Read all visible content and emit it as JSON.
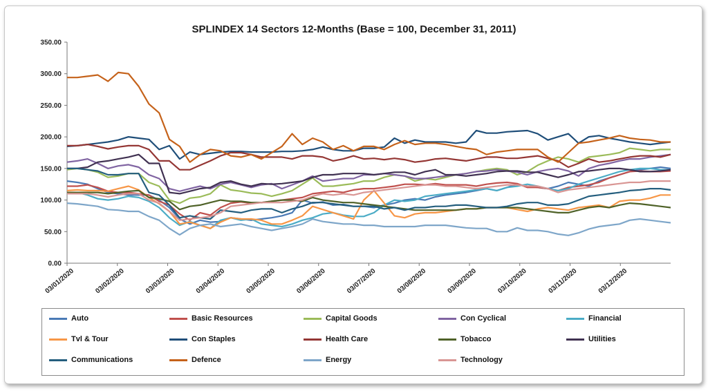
{
  "chart_data": {
    "type": "line",
    "title": "SPLINDEX 14 Sectors 12-Months (Base = 100, December 31, 2011)",
    "xlabel": "",
    "ylabel": "",
    "ylim": [
      0,
      350
    ],
    "yticks": [
      "0.00",
      "50.00",
      "100.00",
      "150.00",
      "200.00",
      "250.00",
      "300.00",
      "350.00"
    ],
    "xticks": [
      "03/01/2020",
      "03/02/2020",
      "03/03/2020",
      "03/04/2020",
      "03/05/2020",
      "03/06/2020",
      "03/07/2020",
      "03/08/2020",
      "03/09/2020",
      "03/10/2020",
      "03/11/2020",
      "03/12/2020"
    ],
    "legend_position": "bottom",
    "grid": false,
    "series": [
      {
        "name": "Auto",
        "color": "#4a7ab5",
        "values": [
          130,
          128,
          125,
          118,
          112,
          110,
          108,
          108,
          108,
          100,
          88,
          70,
          62,
          68,
          65,
          66,
          72,
          70,
          68,
          70,
          72,
          75,
          80,
          100,
          95,
          97,
          92,
          93,
          90,
          90,
          88,
          92,
          95,
          100,
          102,
          100,
          105,
          108,
          110,
          112,
          115,
          118,
          115,
          120,
          125,
          122,
          120,
          118,
          122,
          128,
          125,
          122,
          130,
          135,
          140,
          145,
          148,
          150,
          152,
          150
        ]
      },
      {
        "name": "Basic Resources",
        "color": "#c0504d",
        "values": [
          122,
          122,
          124,
          120,
          114,
          112,
          112,
          110,
          108,
          98,
          92,
          78,
          68,
          80,
          76,
          88,
          95,
          97,
          95,
          96,
          98,
          100,
          102,
          104,
          110,
          112,
          114,
          112,
          116,
          118,
          118,
          120,
          122,
          125,
          125,
          124,
          126,
          124,
          124,
          124,
          122,
          125,
          127,
          128,
          126,
          120,
          120,
          118,
          115,
          120,
          122,
          124,
          128,
          135,
          140,
          145,
          146,
          145,
          145,
          146
        ]
      },
      {
        "name": "Capital Goods",
        "color": "#9bbb59",
        "values": [
          148,
          150,
          148,
          144,
          136,
          138,
          142,
          142,
          128,
          122,
          100,
          95,
          103,
          105,
          110,
          124,
          116,
          114,
          111,
          110,
          106,
          110,
          115,
          125,
          135,
          122,
          122,
          124,
          126,
          130,
          130,
          136,
          140,
          138,
          130,
          134,
          132,
          136,
          140,
          142,
          145,
          148,
          150,
          148,
          140,
          145,
          155,
          162,
          168,
          165,
          160,
          168,
          170,
          172,
          175,
          182,
          180,
          178,
          180,
          180
        ]
      },
      {
        "name": "Con Cyclical",
        "color": "#8064a2",
        "values": [
          160,
          162,
          165,
          158,
          150,
          154,
          156,
          152,
          140,
          134,
          118,
          114,
          118,
          122,
          118,
          125,
          128,
          124,
          120,
          124,
          126,
          118,
          124,
          130,
          138,
          130,
          132,
          134,
          134,
          140,
          140,
          142,
          140,
          138,
          134,
          134,
          136,
          138,
          140,
          142,
          145,
          146,
          148,
          146,
          144,
          140,
          145,
          148,
          150,
          146,
          138,
          150,
          155,
          158,
          162,
          165,
          165,
          168,
          170,
          172
        ]
      },
      {
        "name": "Financial",
        "color": "#4bacc6",
        "values": [
          110,
          112,
          108,
          102,
          100,
          102,
          106,
          104,
          98,
          88,
          72,
          60,
          66,
          60,
          55,
          68,
          72,
          68,
          70,
          62,
          60,
          58,
          62,
          68,
          72,
          78,
          80,
          76,
          74,
          74,
          80,
          92,
          100,
          98,
          100,
          106,
          108,
          110,
          112,
          114,
          116,
          118,
          115,
          120,
          122,
          125,
          122,
          118,
          115,
          118,
          125,
          130,
          135,
          140,
          145,
          148,
          150,
          150,
          148,
          148
        ]
      },
      {
        "name": "Tvl & Tour",
        "color": "#f79646",
        "values": [
          115,
          116,
          115,
          115,
          114,
          118,
          122,
          116,
          104,
          94,
          82,
          62,
          65,
          60,
          55,
          65,
          72,
          70,
          70,
          68,
          62,
          62,
          68,
          75,
          90,
          85,
          80,
          75,
          70,
          100,
          115,
          95,
          75,
          72,
          78,
          80,
          80,
          82,
          84,
          86,
          86,
          88,
          88,
          88,
          85,
          82,
          86,
          88,
          86,
          84,
          88,
          90,
          92,
          88,
          98,
          100,
          100,
          103,
          108,
          108
        ]
      },
      {
        "name": "Con Staples",
        "color": "#1f4e79",
        "values": [
          185,
          186,
          188,
          190,
          192,
          195,
          200,
          198,
          196,
          180,
          186,
          165,
          176,
          172,
          174,
          176,
          177,
          177,
          176,
          176,
          176,
          177,
          177,
          178,
          180,
          184,
          180,
          178,
          178,
          182,
          182,
          184,
          198,
          190,
          195,
          192,
          192,
          192,
          190,
          192,
          210,
          206,
          206,
          208,
          209,
          210,
          205,
          195,
          200,
          205,
          190,
          200,
          202,
          198,
          195,
          192,
          190,
          188,
          190,
          192
        ]
      },
      {
        "name": "Health Care",
        "color": "#943634",
        "values": [
          186,
          186,
          188,
          185,
          181,
          184,
          186,
          186,
          180,
          162,
          162,
          148,
          148,
          155,
          162,
          170,
          175,
          175,
          172,
          168,
          168,
          168,
          165,
          170,
          170,
          168,
          162,
          165,
          170,
          165,
          166,
          164,
          166,
          164,
          160,
          162,
          165,
          166,
          164,
          162,
          165,
          168,
          168,
          166,
          166,
          168,
          170,
          166,
          162,
          152,
          158,
          165,
          160,
          162,
          165,
          168,
          170,
          170,
          168,
          172
        ]
      },
      {
        "name": "Tobacco",
        "color": "#4f6228",
        "values": [
          112,
          112,
          112,
          112,
          110,
          112,
          114,
          115,
          104,
          102,
          98,
          85,
          90,
          92,
          96,
          100,
          98,
          98,
          96,
          96,
          98,
          100,
          100,
          98,
          104,
          100,
          98,
          96,
          96,
          94,
          92,
          90,
          88,
          86,
          84,
          84,
          84,
          84,
          84,
          86,
          86,
          88,
          88,
          88,
          88,
          86,
          84,
          82,
          80,
          80,
          84,
          88,
          90,
          88,
          92,
          95,
          94,
          92,
          90,
          88
        ]
      },
      {
        "name": "Utilities",
        "color": "#403151",
        "values": [
          150,
          150,
          152,
          160,
          162,
          165,
          168,
          172,
          158,
          158,
          112,
          110,
          114,
          118,
          120,
          128,
          130,
          125,
          122,
          126,
          125,
          126,
          128,
          130,
          136,
          140,
          140,
          142,
          142,
          142,
          140,
          142,
          144,
          144,
          140,
          145,
          148,
          140,
          140,
          138,
          140,
          142,
          145,
          146,
          146,
          144,
          144,
          140,
          136,
          140,
          145,
          146,
          148,
          150,
          150,
          148,
          145,
          145,
          146,
          148
        ]
      },
      {
        "name": "Communications",
        "color": "#245e7e",
        "values": [
          150,
          150,
          148,
          146,
          140,
          140,
          142,
          142,
          112,
          108,
          92,
          72,
          75,
          72,
          70,
          84,
          82,
          80,
          84,
          86,
          86,
          80,
          86,
          90,
          96,
          96,
          94,
          92,
          90,
          90,
          90,
          86,
          88,
          84,
          88,
          88,
          90,
          90,
          92,
          92,
          90,
          88,
          88,
          90,
          94,
          96,
          96,
          92,
          92,
          94,
          100,
          106,
          108,
          110,
          112,
          115,
          116,
          118,
          118,
          116
        ]
      },
      {
        "name": "Defence",
        "color": "#c5621a",
        "values": [
          294,
          294,
          296,
          298,
          288,
          302,
          300,
          280,
          252,
          238,
          196,
          185,
          160,
          172,
          180,
          178,
          170,
          168,
          172,
          165,
          175,
          185,
          205,
          188,
          198,
          192,
          180,
          186,
          178,
          185,
          185,
          180,
          188,
          194,
          188,
          190,
          190,
          188,
          185,
          182,
          180,
          172,
          176,
          178,
          180,
          180,
          180,
          168,
          160,
          175,
          190,
          192,
          195,
          198,
          202,
          198,
          196,
          195,
          192,
          192
        ]
      },
      {
        "name": "Energy",
        "color": "#7ea6c9",
        "values": [
          95,
          94,
          92,
          90,
          85,
          84,
          82,
          82,
          74,
          68,
          55,
          45,
          55,
          60,
          62,
          58,
          60,
          62,
          58,
          55,
          52,
          55,
          58,
          62,
          70,
          66,
          64,
          62,
          62,
          60,
          60,
          58,
          58,
          58,
          58,
          60,
          60,
          60,
          58,
          56,
          55,
          55,
          50,
          50,
          56,
          52,
          52,
          50,
          46,
          44,
          48,
          54,
          58,
          60,
          62,
          68,
          70,
          68,
          66,
          64
        ]
      },
      {
        "name": "Technology",
        "color": "#d99694",
        "values": [
          110,
          110,
          110,
          108,
          105,
          108,
          110,
          110,
          100,
          95,
          82,
          68,
          70,
          72,
          74,
          80,
          90,
          92,
          94,
          96,
          96,
          96,
          98,
          100,
          106,
          110,
          108,
          110,
          108,
          112,
          114,
          116,
          118,
          120,
          122,
          124,
          124,
          122,
          122,
          120,
          118,
          120,
          122,
          124,
          124,
          122,
          122,
          118,
          112,
          116,
          118,
          120,
          122,
          124,
          126,
          128,
          128,
          130,
          130,
          130
        ]
      }
    ]
  }
}
